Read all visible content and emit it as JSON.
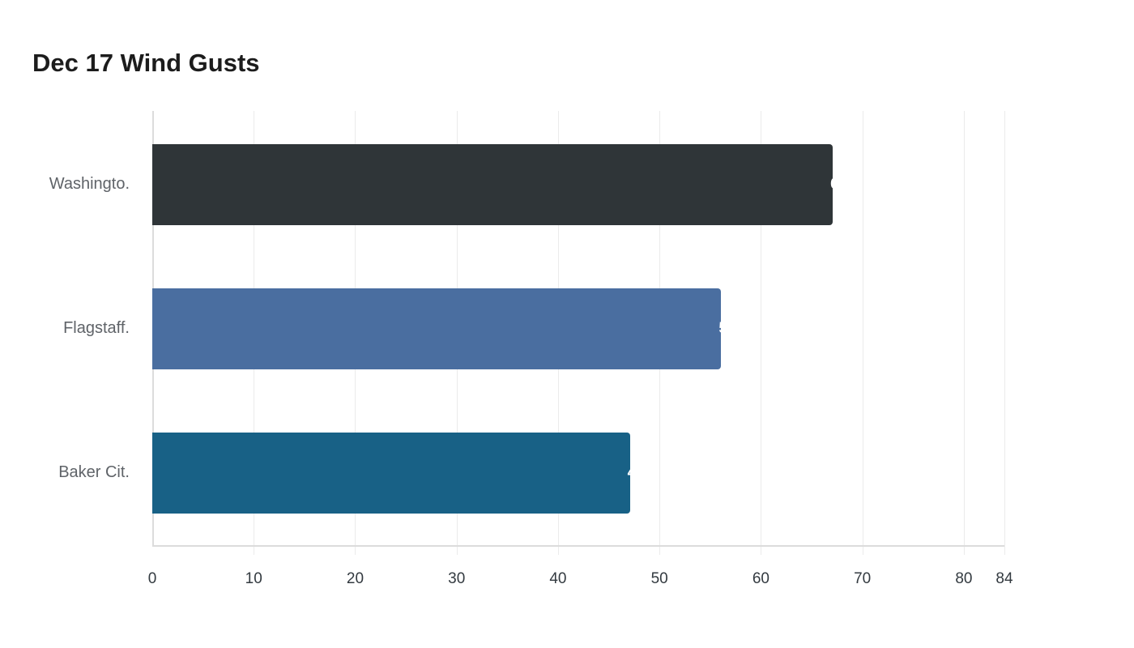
{
  "title": "Dec 17 Wind Gusts",
  "chart_data": {
    "type": "bar",
    "orientation": "horizontal",
    "title": "Dec 17 Wind Gusts",
    "categories": [
      "Washingto.",
      "Flagstaff.",
      "Baker Cit."
    ],
    "values": [
      67,
      56,
      47
    ],
    "colors": [
      "#2f3538",
      "#4a6ea0",
      "#186186"
    ],
    "xlabel": "",
    "ylabel": "",
    "xlim": [
      0,
      84
    ],
    "xticks": [
      0,
      10,
      20,
      30,
      40,
      50,
      60,
      70,
      80,
      84
    ],
    "grid": true,
    "legend": null
  }
}
